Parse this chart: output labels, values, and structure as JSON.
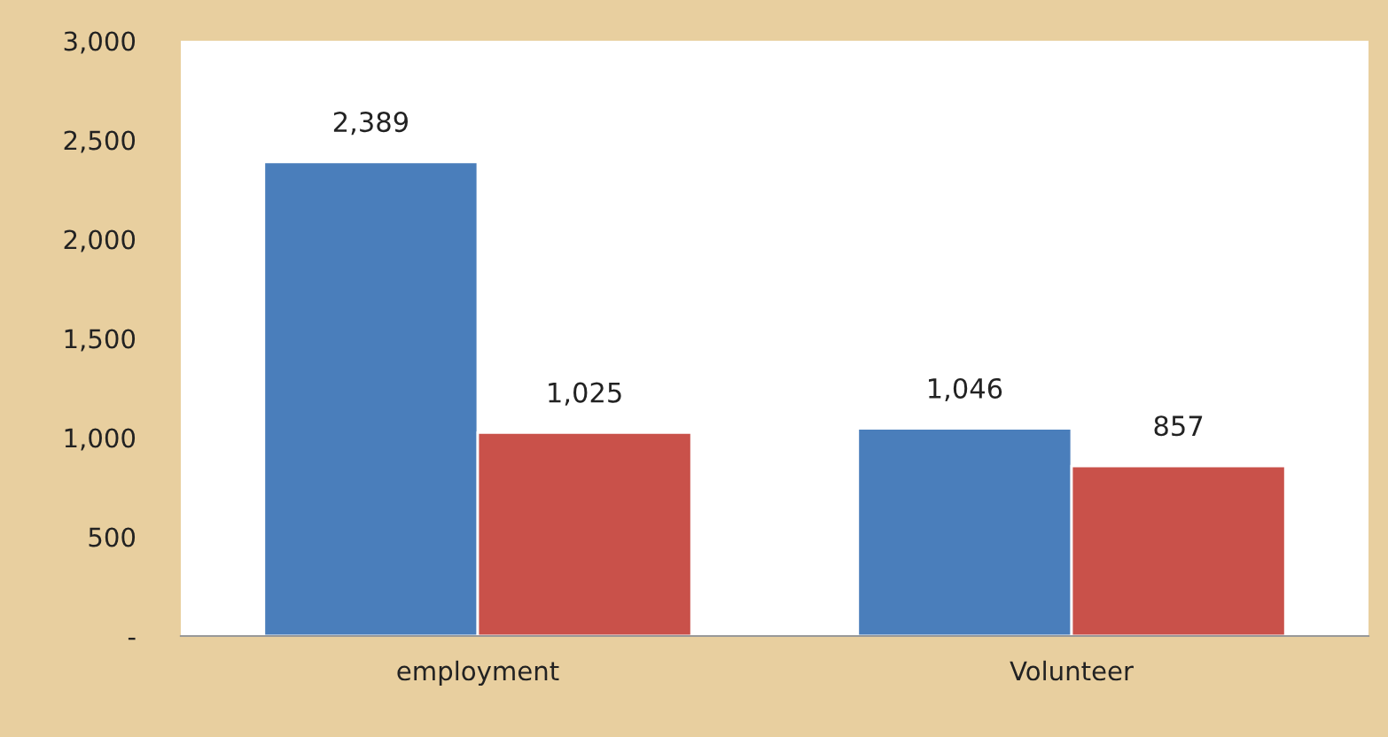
{
  "chart_data": {
    "type": "bar",
    "categories": [
      "employment",
      "Volunteer"
    ],
    "series": [
      {
        "color": "#4a7ebb",
        "values": [
          2389,
          1046
        ],
        "value_labels": [
          "2,389",
          "1,046"
        ]
      },
      {
        "color": "#c9514a",
        "values": [
          1025,
          857
        ],
        "value_labels": [
          "1,025",
          "857"
        ]
      }
    ],
    "ylim": [
      0,
      3000
    ],
    "yticks": [
      {
        "value": 0,
        "label": "-"
      },
      {
        "value": 500,
        "label": "500"
      },
      {
        "value": 1000,
        "label": "1,000"
      },
      {
        "value": 1500,
        "label": "1,500"
      },
      {
        "value": 2000,
        "label": "2,000"
      },
      {
        "value": 2500,
        "label": "2,500"
      },
      {
        "value": 3000,
        "label": "3,000"
      }
    ],
    "grid": false,
    "legend": false
  }
}
